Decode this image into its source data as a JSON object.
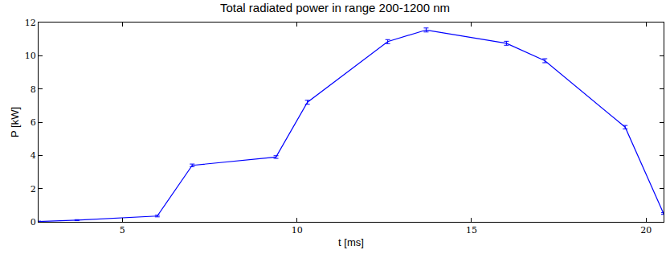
{
  "chart_data": {
    "type": "line",
    "title": "Total radiated power in range 200-1200 nm",
    "x_label": "t [ms]",
    "y_label": "P [kW]",
    "x": [
      2.6,
      3.7,
      6.0,
      7.0,
      9.4,
      10.3,
      12.6,
      13.7,
      16.0,
      17.1,
      19.4,
      20.5
    ],
    "values": [
      0.02,
      0.1,
      0.35,
      3.4,
      3.9,
      7.2,
      10.85,
      11.55,
      10.75,
      9.7,
      5.7,
      0.5
    ],
    "errors": [
      0.02,
      0.03,
      0.05,
      0.08,
      0.08,
      0.12,
      0.12,
      0.12,
      0.12,
      0.12,
      0.1,
      0.05
    ],
    "color": "#0000ff",
    "xlim": [
      2.6,
      20.5
    ],
    "xticks": [
      5,
      10,
      15,
      20
    ],
    "ylim": [
      0,
      12
    ],
    "yticks": [
      0,
      2,
      4,
      6,
      8,
      10,
      12
    ],
    "grid": false
  }
}
